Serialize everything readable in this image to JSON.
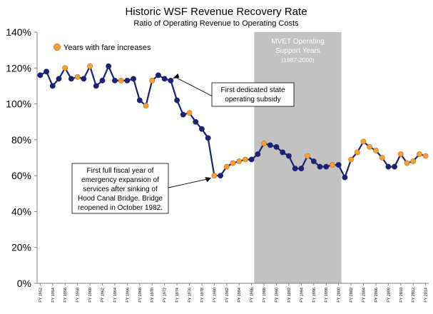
{
  "chart_data": {
    "type": "line",
    "title": "Historic WSF Revenue Recovery Rate",
    "subtitle": "Ratio of Operating Revenue to Operating Costs",
    "xlabel": "",
    "ylabel": "",
    "ylim": [
      0,
      140
    ],
    "yticks": [
      "0%",
      "20%",
      "40%",
      "60%",
      "80%",
      "100%",
      "120%",
      "140%"
    ],
    "grid": false,
    "legend": {
      "label": "Years with fare increases",
      "marker_color": "#F5A030",
      "placement": "top-left"
    },
    "colors": {
      "line": "#1C2173",
      "point": "#1C2173",
      "fare_increase": "#F5A030",
      "shade": "#C2C2C2"
    },
    "shaded_region": {
      "x_start": 1987,
      "x_end": 2000,
      "label_lines": [
        "MVET Operating",
        "Support Years",
        "(1987-2000)"
      ]
    },
    "xticks": [
      {
        "year": 1952,
        "label": "FY 1952"
      },
      {
        "year": 1954,
        "label": "FY 1954"
      },
      {
        "year": 1956,
        "label": "FY 1956"
      },
      {
        "year": 1958,
        "label": "FY 1958"
      },
      {
        "year": 1960,
        "label": "FY 1960"
      },
      {
        "year": 1962,
        "label": "FY 1962"
      },
      {
        "year": 1964,
        "label": "FY 1964"
      },
      {
        "year": 1966,
        "label": "FY 1966"
      },
      {
        "year": 1968,
        "label": "FY 1968"
      },
      {
        "year": 1970,
        "label": "FY 1970"
      },
      {
        "year": 1972,
        "label": "FY 1972"
      },
      {
        "year": 1974,
        "label": "FY 1974"
      },
      {
        "year": 1976,
        "label": "FY 1976"
      },
      {
        "year": 1978,
        "label": "FY 1978"
      },
      {
        "year": 1980,
        "label": "FY 1980"
      },
      {
        "year": 1982,
        "label": "FY 1982"
      },
      {
        "year": 1984,
        "label": "FY 1984"
      },
      {
        "year": 1986,
        "label": "FY 1986"
      },
      {
        "year": 1988,
        "label": "FY 1988"
      },
      {
        "year": 1990,
        "label": "FY 1990"
      },
      {
        "year": 1992,
        "label": "FY 1992"
      },
      {
        "year": 1994,
        "label": "FY 1994"
      },
      {
        "year": 1996,
        "label": "FY 1996"
      },
      {
        "year": 1998,
        "label": "FY 1998"
      },
      {
        "year": 2000,
        "label": "FY 2000"
      },
      {
        "year": 2002,
        "label": "FY 2002"
      },
      {
        "year": 2004,
        "label": "FY 2004"
      },
      {
        "year": 2006,
        "label": "FY 2006"
      },
      {
        "year": 2008,
        "label": "FY 2008"
      },
      {
        "year": 2010,
        "label": "FY 2010"
      },
      {
        "year": 2012,
        "label": "FY 2012"
      },
      {
        "year": 2014,
        "label": "FY 2014"
      }
    ],
    "series": [
      {
        "x": [
          1952,
          1953,
          1954,
          1955,
          1956,
          1957,
          1958,
          1959,
          1960,
          1961,
          1962,
          1963,
          1964,
          1965,
          1966,
          1967,
          1968,
          1969,
          1970,
          1971,
          1972,
          1973,
          1974,
          1975,
          1976,
          1977,
          1978,
          1979,
          1980,
          1981,
          1982,
          1983,
          1984,
          1985,
          1986,
          1987,
          1988,
          1989,
          1990,
          1991,
          1992,
          1993,
          1994,
          1995,
          1996,
          1997,
          1998,
          1999,
          2000,
          2001,
          2002,
          2003,
          2004,
          2005,
          2006,
          2007,
          2008,
          2009,
          2010,
          2011,
          2012,
          2013,
          2014
        ],
        "y": [
          116,
          118,
          110,
          114,
          120,
          114,
          115,
          114,
          121,
          110,
          113,
          121,
          113,
          113,
          113,
          114,
          102,
          99,
          113,
          116,
          114,
          113,
          102,
          94,
          95,
          90,
          86,
          81,
          60,
          60,
          65,
          67,
          68,
          69,
          69,
          72,
          78,
          77,
          76,
          73,
          71,
          64,
          64,
          71,
          68,
          65,
          65,
          66,
          66,
          59,
          69,
          73,
          79,
          76,
          74,
          70,
          65,
          65,
          72,
          67,
          68,
          72,
          71
        ],
        "fare_increase": [
          false,
          false,
          false,
          false,
          true,
          false,
          true,
          false,
          true,
          false,
          false,
          false,
          false,
          true,
          false,
          false,
          false,
          true,
          true,
          false,
          false,
          false,
          false,
          false,
          true,
          false,
          false,
          false,
          true,
          false,
          true,
          true,
          true,
          true,
          false,
          false,
          true,
          false,
          false,
          false,
          false,
          false,
          false,
          true,
          false,
          false,
          false,
          true,
          false,
          false,
          true,
          true,
          true,
          true,
          true,
          true,
          false,
          false,
          true,
          true,
          true,
          true,
          true
        ]
      }
    ],
    "annotations": [
      {
        "lines": [
          "First dedicated state",
          "operating subsidy"
        ],
        "points_to_year": 1973
      },
      {
        "lines": [
          "First full fiscal year of",
          "emergency expansion of",
          "services  after sinking of",
          "Hood Canal Bridge. Bridge",
          "reopened in October 1982."
        ],
        "points_to_year": 1980
      }
    ]
  }
}
